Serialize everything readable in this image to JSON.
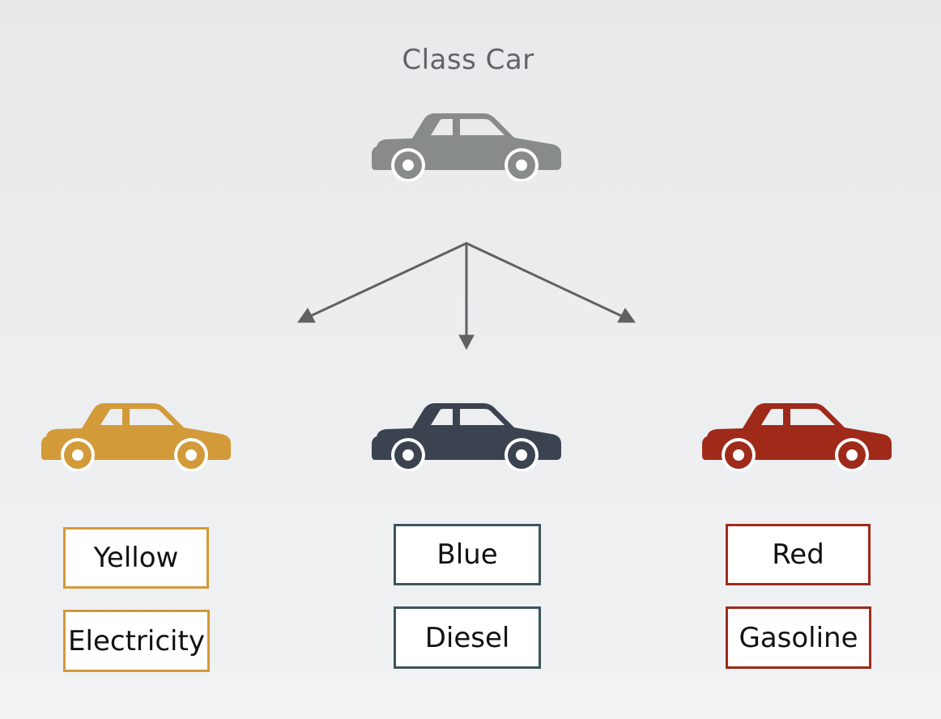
{
  "diagram": {
    "title": "Class Car",
    "colors": {
      "class_car": "#878b8b",
      "arrows": "#5e6263",
      "yellow": "#d29a38",
      "blue": "#3c4350",
      "red": "#9f2a1a",
      "blue_box_border": "#3c555c"
    },
    "instances": [
      {
        "color_label": "Yellow",
        "fuel_label": "Electricity"
      },
      {
        "color_label": "Blue",
        "fuel_label": "Diesel"
      },
      {
        "color_label": "Red",
        "fuel_label": "Gasoline"
      }
    ]
  }
}
